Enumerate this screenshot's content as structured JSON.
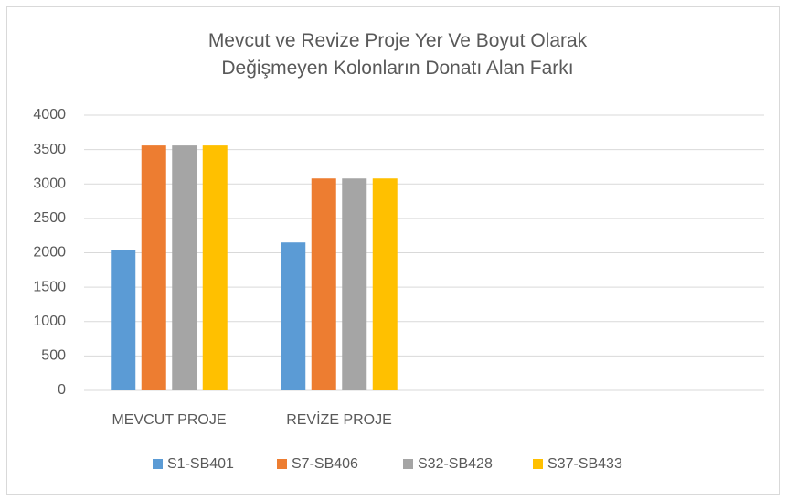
{
  "chart_data": {
    "type": "bar",
    "title": "Mevcut ve Revize Proje Yer Ve Boyut Olarak Değişmeyen Kolonların Donatı Alan Farkı",
    "categories": [
      "MEVCUT PROJE",
      "REVİZE PROJE",
      null,
      null
    ],
    "series": [
      {
        "name": "S1-SB401",
        "color": "#5b9bd5",
        "values": [
          2040,
          2150,
          null,
          null
        ]
      },
      {
        "name": "S7-SB406",
        "color": "#ed7d31",
        "values": [
          3560,
          3080,
          null,
          null
        ]
      },
      {
        "name": "S32-SB428",
        "color": "#a5a5a5",
        "values": [
          3560,
          3080,
          null,
          null
        ]
      },
      {
        "name": "S37-SB433",
        "color": "#ffc000",
        "values": [
          3560,
          3080,
          null,
          null
        ]
      }
    ],
    "ylim": [
      0,
      4000
    ],
    "yticks": [
      0,
      500,
      1000,
      1500,
      2000,
      2500,
      3000,
      3500,
      4000
    ],
    "grid": true,
    "legend": "bottom"
  }
}
